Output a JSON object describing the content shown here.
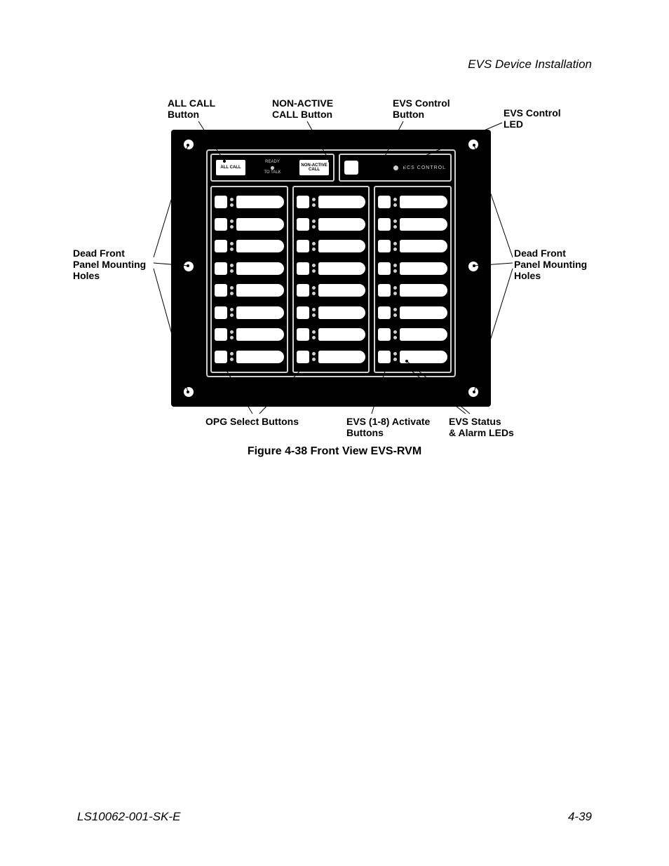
{
  "header": {
    "title": "EVS Device Installation"
  },
  "footer": {
    "doc": "LS10062-001-SK-E",
    "page": "4-39"
  },
  "figure": {
    "caption": "Figure 4-38  Front View EVS-RVM",
    "panel": {
      "bg_color": "#000000",
      "outline_color": "#d0d0d0",
      "button_color": "#ffffff",
      "mounting_holes": 6,
      "top_section": {
        "all_call_label": "ALL CALL",
        "ready_line1": "READY",
        "ready_line2": "TO  TALK",
        "non_active_line1": "NON-ACTIVE",
        "non_active_line2": "CALL",
        "ecs_label": "ECS   CONTROL"
      },
      "grid": {
        "columns": 3,
        "rows_per_column": 8
      }
    },
    "callouts": {
      "all_call": {
        "line1": "ALL CALL",
        "line2": "Button"
      },
      "non_active": {
        "line1": "NON-ACTIVE",
        "line2": "CALL Button"
      },
      "evs_ctrl_btn": {
        "line1": "EVS Control",
        "line2": "Button"
      },
      "evs_ctrl_led": {
        "line1": "EVS Control",
        "line2": "LED"
      },
      "dead_front_l": {
        "line1": "Dead Front",
        "line2": "Panel Mounting",
        "line3": "Holes"
      },
      "dead_front_r": {
        "line1": "Dead Front",
        "line2": "Panel Mounting",
        "line3": "Holes"
      },
      "opg": {
        "text": "OPG Select Buttons"
      },
      "evs_activate": {
        "line1": "EVS (1-8) Activate",
        "line2": "Buttons"
      },
      "evs_status": {
        "line1": "EVS Status",
        "line2": "& Alarm LEDs"
      }
    }
  }
}
